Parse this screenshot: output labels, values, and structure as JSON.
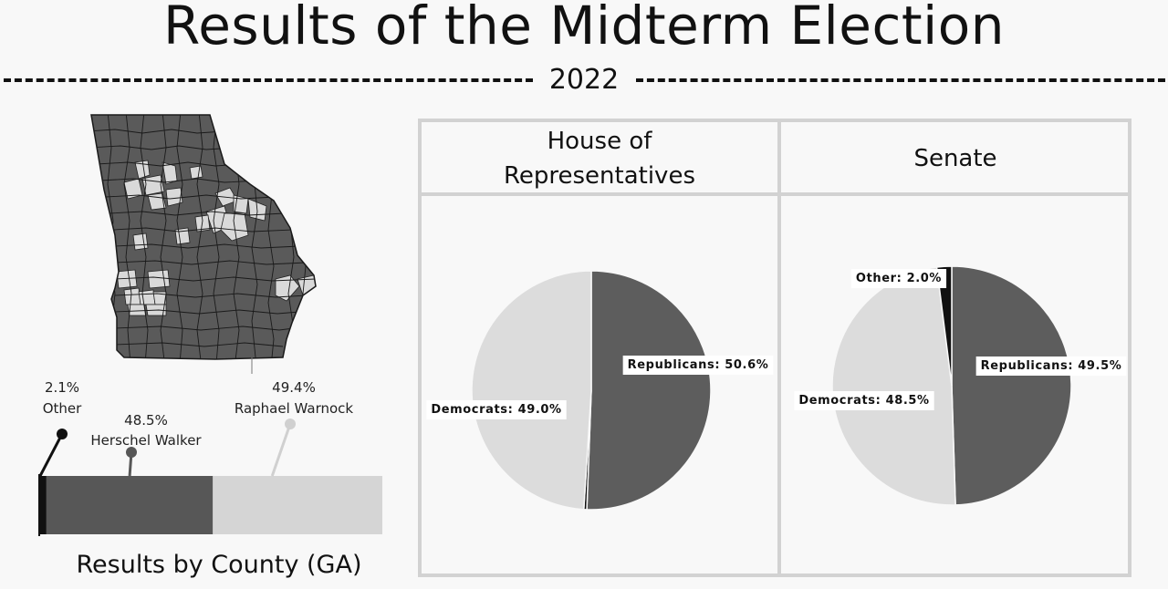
{
  "header": {
    "title": "Results of the Midterm Election",
    "year": "2022"
  },
  "county_map": {
    "caption": "Results by County (GA)",
    "colors": {
      "republican": "#5a5a5a",
      "democrat": "#d9d9d9",
      "border": "#222222"
    }
  },
  "chart_data": [
    {
      "type": "bar",
      "orientation": "horizontal-stacked",
      "name": "county-results-bar",
      "categories": [
        "Other",
        "Herschel Walker",
        "Raphael Warnock"
      ],
      "values": [
        2.1,
        48.5,
        49.4
      ],
      "labels": [
        "2.1%",
        "48.5%",
        "49.4%"
      ],
      "colors": [
        "#111111",
        "#575757",
        "#d5d5d5"
      ],
      "title": "Results by County (GA)"
    },
    {
      "type": "pie",
      "name": "house-pie",
      "title": "House of Representatives",
      "slices": [
        {
          "label": "Republicans",
          "value": 50.6,
          "text": "Republicans: 50.6%",
          "color": "#5d5d5d"
        },
        {
          "label": "Other",
          "value": 0.4,
          "text": "",
          "color": "#111111"
        },
        {
          "label": "Democrats",
          "value": 49.0,
          "text": "Democrats: 49.0%",
          "color": "#dcdcdc"
        }
      ]
    },
    {
      "type": "pie",
      "name": "senate-pie",
      "title": "Senate",
      "slices": [
        {
          "label": "Republicans",
          "value": 49.5,
          "text": "Republicans: 49.5%",
          "color": "#5d5d5d"
        },
        {
          "label": "Democrats",
          "value": 48.5,
          "text": "Democrats: 48.5%",
          "color": "#dcdcdc"
        },
        {
          "label": "Other",
          "value": 2.0,
          "text": "Other: 2.0%",
          "color": "#111111"
        }
      ]
    }
  ]
}
